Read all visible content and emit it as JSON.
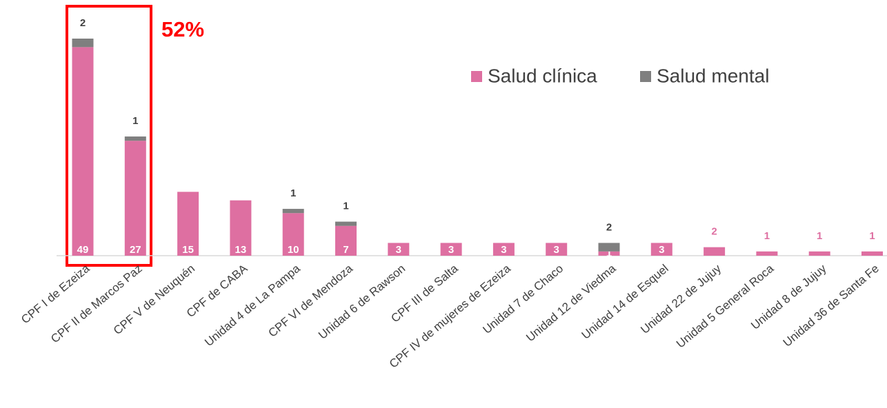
{
  "chart_data": {
    "type": "stacked_bar",
    "annotation": "52%",
    "categories": [
      "CPF I de Ezeiza",
      "CPF II de Marcos Paz",
      "CPF V de Neuquén",
      "CPF de CABA",
      "Unidad 4 de La Pampa",
      "CPF VI de Mendoza",
      "Unidad 6 de Rawson",
      "CPF III de Salta",
      "CPF IV de mujeres de Ezeiza",
      "Unidad 7 de Chaco",
      "Unidad 12 de Viedma",
      "Unidad 14 de Esquel",
      "Unidad 22 de Jujuy",
      "Unidad 5 General Roca",
      "Unidad 8 de Jujuy",
      "Unidad 36 de Santa Fe"
    ],
    "series": [
      {
        "name": "Salud clínica",
        "color": "#de6fa1",
        "values": [
          49,
          27,
          15,
          13,
          10,
          7,
          3,
          3,
          3,
          3,
          1,
          3,
          2,
          1,
          1,
          1
        ]
      },
      {
        "name": "Salud mental",
        "color": "#7f7f7f",
        "values": [
          2,
          1,
          null,
          null,
          1,
          1,
          null,
          null,
          null,
          null,
          2,
          null,
          null,
          null,
          null,
          null
        ]
      }
    ],
    "legend": "top-right"
  }
}
